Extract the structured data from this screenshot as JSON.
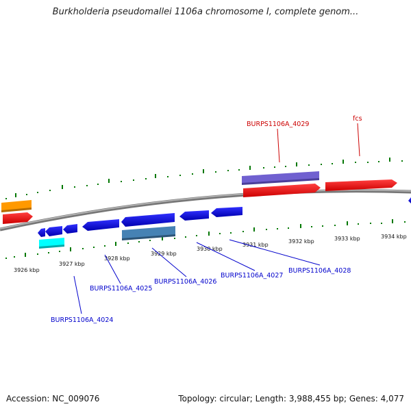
{
  "title": "Burkholderia pseudomallei 1106a chromosome I, complete genom...",
  "footer": {
    "accession": "Accession: NC_009076",
    "summary": "Topology: circular; Length: 3,988,455 bp; Genes: 4,077"
  },
  "scale": {
    "kbp_labels": [
      "3926 kbp",
      "3927 kbp",
      "3928 kbp",
      "3929 kbp",
      "3930 kbp",
      "3931 kbp",
      "3932 kbp",
      "3933 kbp",
      "3934 kbp"
    ]
  },
  "gene_labels": {
    "top": [
      "BURPS1106A_4029",
      "fcs"
    ],
    "bottom": [
      "BURPS1106A_4024",
      "BURPS1106A_4025",
      "BURPS1106A_4026",
      "BURPS1106A_4027",
      "BURPS1106A_4028"
    ]
  },
  "colors": {
    "forward_gene": "#ff0000",
    "reverse_gene": "#0000ee",
    "top_label": "#cc0000",
    "bottom_label": "#0000cc",
    "tick": "#007700",
    "backbone": "#777777",
    "purple_feature": "#7060d0",
    "orange_feature": "#ff9900",
    "cyan_feature": "#00ffff",
    "steel_feature": "#4682b4"
  }
}
